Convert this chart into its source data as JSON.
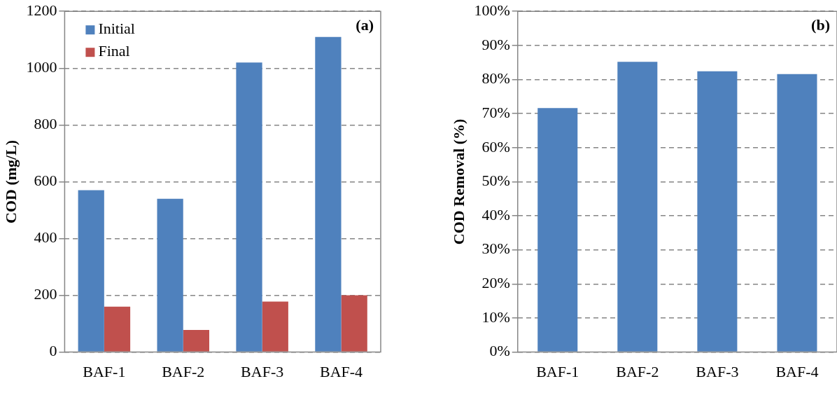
{
  "chart_data": [
    {
      "type": "bar",
      "ylabel": "COD (mg/L)",
      "categories": [
        "BAF-1",
        "BAF-2",
        "BAF-3",
        "BAF-4"
      ],
      "series": [
        {
          "name": "Initial",
          "color": "#4f81bd",
          "values": [
            570,
            540,
            1020,
            1110
          ]
        },
        {
          "name": "Final",
          "color": "#c0504d",
          "values": [
            160,
            78,
            178,
            200
          ]
        }
      ],
      "ylim": [
        0,
        1200
      ],
      "yticks": [
        0,
        200,
        400,
        600,
        800,
        1000,
        1200
      ],
      "grid": "y",
      "legend": "top left",
      "annotations": [
        "(a)"
      ]
    },
    {
      "type": "bar",
      "ylabel": "COD Removal (%)",
      "categories": [
        "BAF-1",
        "BAF-2",
        "BAF-3",
        "BAF-4"
      ],
      "series": [
        {
          "color": "#4f81bd",
          "values": [
            71.6,
            85.2,
            82.4,
            81.6
          ]
        }
      ],
      "ylim": [
        0,
        100
      ],
      "yticks": [
        {
          "value": 0,
          "label": "0%"
        },
        {
          "value": 10,
          "label": "10%"
        },
        {
          "value": 20,
          "label": "20%"
        },
        {
          "value": 30,
          "label": "30%"
        },
        {
          "value": 40,
          "label": "40%"
        },
        {
          "value": 50,
          "label": "50%"
        },
        {
          "value": 60,
          "label": "60%"
        },
        {
          "value": 70,
          "label": "70%"
        },
        {
          "value": 80,
          "label": "80%"
        },
        {
          "value": 90,
          "label": "90%"
        },
        {
          "value": 100,
          "label": "100%"
        }
      ],
      "grid": "y",
      "legend": false,
      "annotations": [
        "(b)"
      ]
    }
  ]
}
